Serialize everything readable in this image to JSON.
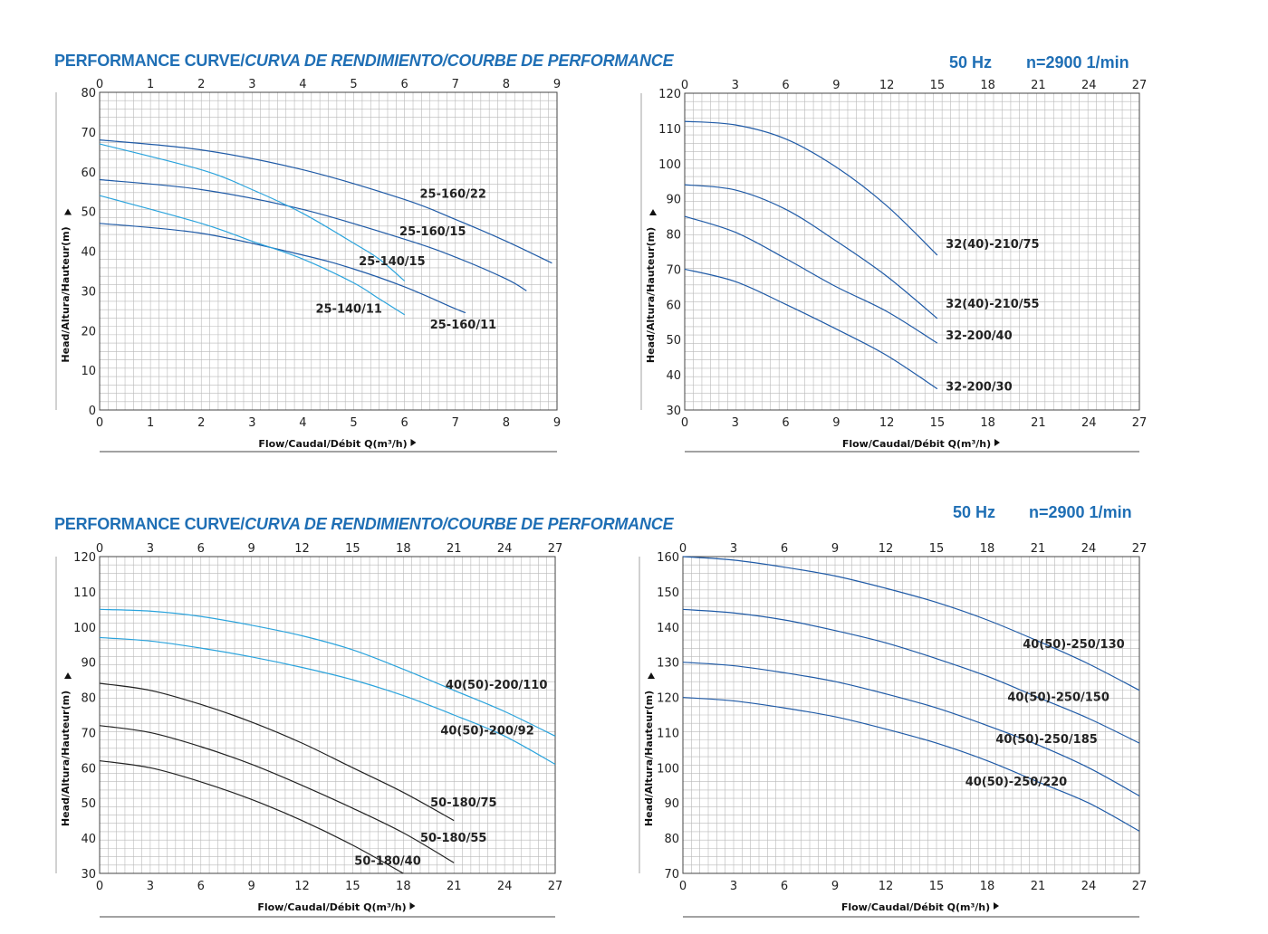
{
  "header_top": {
    "title_main": "PERFORMANCE CURVE/",
    "title_italic": "CURVA DE RENDIMIENTO/COURBE DE PERFORMANCE",
    "freq": "50 Hz",
    "speed": "n=2900 1/min"
  },
  "header_bottom": {
    "title_main": "PERFORMANCE CURVE/",
    "title_italic": "CURVA DE RENDIMIENTO/COURBE DE PERFORMANCE",
    "freq": "50 Hz",
    "speed": "n=2900 1/min"
  },
  "colors": {
    "dark_blue": "#1f5aa6",
    "light_blue": "#2aa3dc",
    "black": "#222222",
    "grid": "#b9b9b9",
    "title_blue": "#1f6fb5"
  },
  "chart_data": [
    {
      "type": "line",
      "ylabel": "Head/Altura/Hauteur(m)",
      "xlabel": "Flow/Caudal/Débit Q(m³/h)",
      "xlim": [
        0,
        9
      ],
      "ylim": [
        0,
        80
      ],
      "xticks": [
        0,
        1,
        2,
        3,
        4,
        5,
        6,
        7,
        8,
        9
      ],
      "yticks": [
        0,
        10,
        20,
        30,
        40,
        50,
        60,
        70,
        80
      ],
      "series": [
        {
          "name": "25-160/22",
          "color": "dark_blue",
          "x": [
            0,
            2,
            4,
            6,
            7,
            8,
            8.9
          ],
          "y": [
            68,
            65.5,
            60.5,
            53,
            48,
            42.5,
            37
          ]
        },
        {
          "name": "25-160/15",
          "color": "dark_blue",
          "x": [
            0,
            2,
            4,
            6,
            7,
            8,
            8.4
          ],
          "y": [
            58,
            55.5,
            50.5,
            43,
            38.5,
            33,
            30
          ]
        },
        {
          "name": "25-160/11",
          "color": "dark_blue",
          "x": [
            0,
            2,
            4,
            5,
            6,
            7,
            7.2
          ],
          "y": [
            47,
            44.5,
            39,
            35.5,
            31,
            25.5,
            24.5
          ]
        },
        {
          "name": "25-140/15",
          "color": "light_blue",
          "x": [
            0,
            2,
            3,
            4,
            5,
            5.5,
            6
          ],
          "y": [
            67,
            60.5,
            55.5,
            49.5,
            42,
            38,
            32.5
          ]
        },
        {
          "name": "25-140/11",
          "color": "light_blue",
          "x": [
            0,
            2,
            3,
            4,
            5,
            5.5,
            6
          ],
          "y": [
            54,
            47,
            42.5,
            38,
            32,
            28,
            24
          ]
        }
      ],
      "labels": [
        {
          "text": "25-160/22",
          "x": 6.3,
          "y": 53.5
        },
        {
          "text": "25-160/15",
          "x": 5.9,
          "y": 44
        },
        {
          "text": "25-140/15",
          "x": 5.1,
          "y": 36.5
        },
        {
          "text": "25-140/11",
          "x": 4.25,
          "y": 24.5
        },
        {
          "text": "25-160/11",
          "x": 6.5,
          "y": 20.5
        }
      ]
    },
    {
      "type": "line",
      "ylabel": "Head/Altura/Hauteur(m)",
      "xlabel": "Flow/Caudal/Débit Q(m³/h)",
      "xlim": [
        0,
        27
      ],
      "ylim": [
        30,
        120
      ],
      "xticks": [
        0,
        3,
        6,
        9,
        12,
        15,
        18,
        21,
        24,
        27
      ],
      "yticks": [
        30,
        40,
        50,
        60,
        70,
        80,
        90,
        100,
        110,
        120
      ],
      "series": [
        {
          "name": "32(40)-210/75",
          "color": "dark_blue",
          "x": [
            0,
            3,
            6,
            9,
            12,
            15
          ],
          "y": [
            112,
            111,
            107,
            99,
            88,
            74
          ]
        },
        {
          "name": "32(40)-210/55",
          "color": "dark_blue",
          "x": [
            0,
            3,
            6,
            9,
            12,
            15
          ],
          "y": [
            94,
            92.5,
            87,
            78,
            68,
            56
          ]
        },
        {
          "name": "32-200/40",
          "color": "dark_blue",
          "x": [
            0,
            3,
            6,
            9,
            12,
            15
          ],
          "y": [
            85,
            80.5,
            73,
            65,
            58,
            49
          ]
        },
        {
          "name": "32-200/30",
          "color": "dark_blue",
          "x": [
            0,
            3,
            6,
            9,
            12,
            15
          ],
          "y": [
            70,
            66.5,
            60,
            53,
            45.5,
            36
          ]
        }
      ],
      "labels": [
        {
          "text": "32(40)-210/75",
          "x": 15.5,
          "y": 76
        },
        {
          "text": "32(40)-210/55",
          "x": 15.5,
          "y": 59
        },
        {
          "text": "32-200/40",
          "x": 15.5,
          "y": 50
        },
        {
          "text": "32-200/30",
          "x": 15.5,
          "y": 35.5
        }
      ]
    },
    {
      "type": "line",
      "ylabel": "Head/Altura/Hauteur(m)",
      "xlabel": "Flow/Caudal/Débit Q(m³/h)",
      "xlim": [
        0,
        27
      ],
      "ylim": [
        30,
        120
      ],
      "xticks": [
        0,
        3,
        6,
        9,
        12,
        15,
        18,
        21,
        24,
        27
      ],
      "yticks": [
        30,
        40,
        50,
        60,
        70,
        80,
        90,
        100,
        110,
        120
      ],
      "series": [
        {
          "name": "40(50)-200/110",
          "color": "light_blue",
          "x": [
            0,
            3,
            6,
            9,
            12,
            15,
            18,
            21,
            24,
            27
          ],
          "y": [
            105,
            104.5,
            103,
            100.5,
            97.5,
            93.5,
            88,
            82,
            76,
            69
          ]
        },
        {
          "name": "40(50)-200/92",
          "color": "light_blue",
          "x": [
            0,
            3,
            6,
            9,
            12,
            15,
            18,
            21,
            24,
            27
          ],
          "y": [
            97,
            96,
            94,
            91.5,
            88.5,
            85,
            80.5,
            75,
            69,
            61
          ]
        },
        {
          "name": "50-180/75",
          "color": "black",
          "x": [
            0,
            3,
            6,
            9,
            12,
            15,
            18,
            21
          ],
          "y": [
            84,
            82,
            78,
            73,
            67,
            60,
            53,
            45
          ]
        },
        {
          "name": "50-180/55",
          "color": "black",
          "x": [
            0,
            3,
            6,
            9,
            12,
            15,
            18,
            21
          ],
          "y": [
            72,
            70,
            66,
            61,
            55,
            48.5,
            41.5,
            33
          ]
        },
        {
          "name": "50-180/40",
          "color": "black",
          "x": [
            0,
            3,
            6,
            9,
            12,
            15,
            18
          ],
          "y": [
            62,
            60,
            56,
            51,
            45,
            38,
            30
          ]
        }
      ],
      "labels": [
        {
          "text": "40(50)-200/110",
          "x": 20.5,
          "y": 82.5
        },
        {
          "text": "40(50)-200/92",
          "x": 20.2,
          "y": 69.5
        },
        {
          "text": "50-180/75",
          "x": 19.6,
          "y": 49
        },
        {
          "text": "50-180/55",
          "x": 19,
          "y": 39
        },
        {
          "text": "50-180/40",
          "x": 15.1,
          "y": 32.5
        }
      ]
    },
    {
      "type": "line",
      "ylabel": "Head/Altura/Hauteur(m)",
      "xlabel": "Flow/Caudal/Débit Q(m³/h)",
      "xlim": [
        0,
        27
      ],
      "ylim": [
        70,
        160
      ],
      "xticks": [
        0,
        3,
        6,
        9,
        12,
        15,
        18,
        21,
        24,
        27
      ],
      "yticks": [
        70,
        80,
        90,
        100,
        110,
        120,
        130,
        140,
        150,
        160
      ],
      "series": [
        {
          "name": "40(50)-250/130",
          "color": "dark_blue",
          "x": [
            0,
            3,
            6,
            9,
            12,
            15,
            18,
            21,
            24,
            27
          ],
          "y": [
            160,
            159,
            157,
            154.5,
            151,
            147,
            142,
            136,
            129.5,
            122
          ]
        },
        {
          "name": "40(50)-250/150",
          "color": "dark_blue",
          "x": [
            0,
            3,
            6,
            9,
            12,
            15,
            18,
            21,
            24,
            27
          ],
          "y": [
            145,
            144,
            142,
            139,
            135.5,
            131,
            126,
            120,
            114,
            107
          ]
        },
        {
          "name": "40(50)-250/185",
          "color": "dark_blue",
          "x": [
            0,
            3,
            6,
            9,
            12,
            15,
            18,
            21,
            24,
            27
          ],
          "y": [
            130,
            129,
            127,
            124.5,
            121,
            117,
            112,
            106.5,
            100,
            92
          ]
        },
        {
          "name": "40(50)-250/220",
          "color": "dark_blue",
          "x": [
            0,
            3,
            6,
            9,
            12,
            15,
            18,
            21,
            24,
            27
          ],
          "y": [
            120,
            119,
            117,
            114.5,
            111,
            107,
            102,
            96,
            90,
            82
          ]
        }
      ],
      "labels": [
        {
          "text": "40(50)-250/130",
          "x": 20.1,
          "y": 134
        },
        {
          "text": "40(50)-250/150",
          "x": 19.2,
          "y": 119
        },
        {
          "text": "40(50)-250/185",
          "x": 18.5,
          "y": 107
        },
        {
          "text": "40(50)-250/220",
          "x": 16.7,
          "y": 95
        }
      ]
    }
  ]
}
